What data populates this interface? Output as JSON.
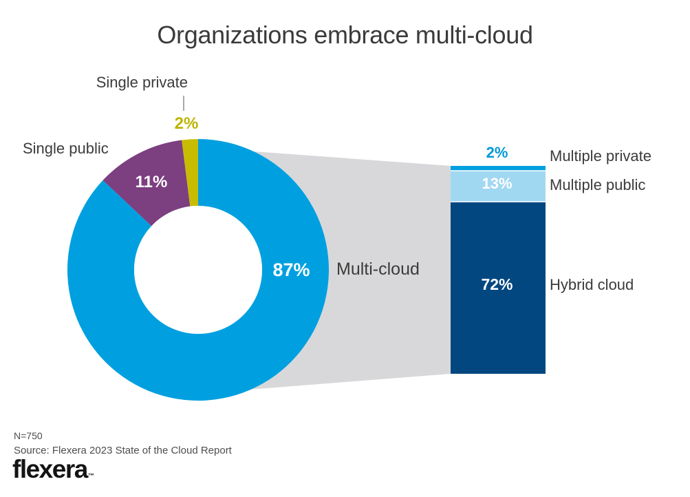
{
  "title": "Organizations embrace multi-cloud",
  "chart_data": {
    "type": "pie",
    "subtype": "donut-with-breakout-stacked-bar",
    "title": "Organizations embrace multi-cloud",
    "sample_note": "N=750",
    "source_note": "Source: Flexera 2023 State of the Cloud Report",
    "donut": {
      "start_angle_deg": 0,
      "direction": "clockwise",
      "segments": [
        {
          "label": "Multi-cloud",
          "value": 87,
          "display": "87%",
          "color": "#00a0e0"
        },
        {
          "label": "Single public",
          "value": 11,
          "display": "11%",
          "color": "#7c3f80"
        },
        {
          "label": "Single private",
          "value": 2,
          "display": "2%",
          "color": "#c8bc00"
        }
      ]
    },
    "breakout_bar": {
      "parent_segment": "Multi-cloud",
      "total": 87,
      "segments": [
        {
          "label": "Multiple private",
          "value": 2,
          "display": "2%",
          "color": "#00a0e0"
        },
        {
          "label": "Multiple public",
          "value": 13,
          "display": "13%",
          "color": "#a1d8f1"
        },
        {
          "label": "Hybrid cloud",
          "value": 72,
          "display": "72%",
          "color": "#024780"
        }
      ]
    },
    "connector_color": "#d8d8da"
  },
  "colors": {
    "donut_2pct_label": "#bfb400",
    "bar_2pct_label": "#0099d8",
    "inside_label": "#ffffff",
    "category_label": "#3b3b3b",
    "leader_line": "#8a8a8a"
  },
  "footer": {
    "sample_size": "N=750",
    "source": "Source: Flexera 2023 State of the Cloud Report",
    "logo_text": "flexera",
    "logo_tm": "™"
  }
}
